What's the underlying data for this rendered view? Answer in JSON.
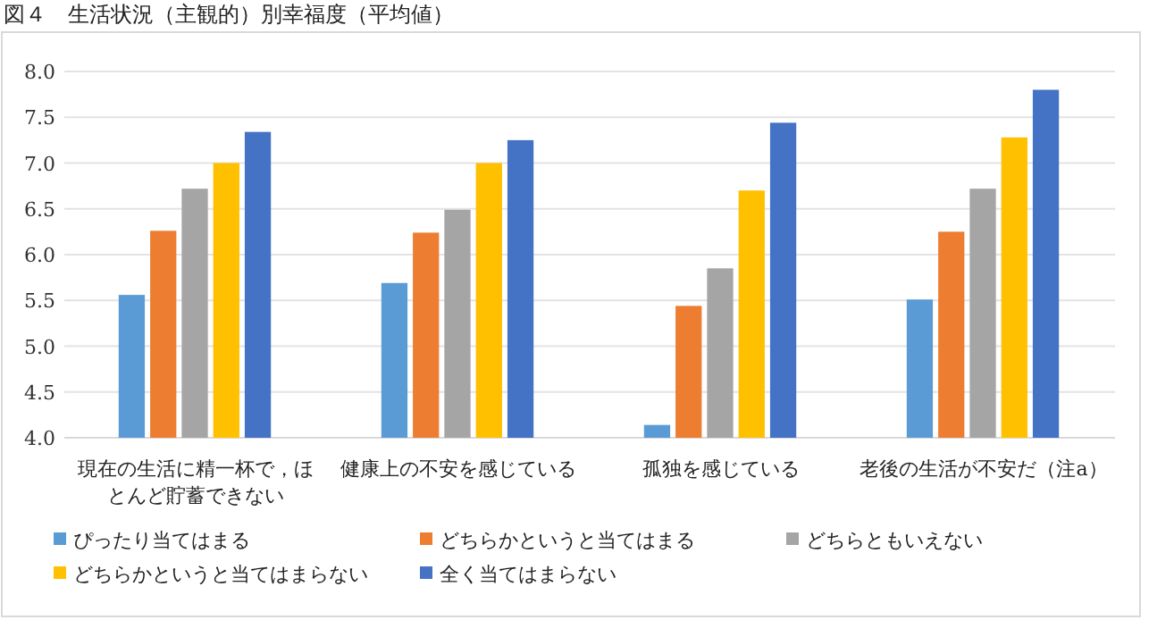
{
  "chart_data": {
    "type": "bar",
    "title": "図４　生活状況（主観的）別幸福度（平均値）",
    "categories": [
      "現在の生活に精一杯で，ほとんど貯蓄できない",
      "健康上の不安を感じている",
      "孤独を感じている",
      "老後の生活が不安だ（注a）"
    ],
    "series": [
      {
        "name": "ぴったり当てはまる",
        "color": "#5b9bd5",
        "values": [
          5.56,
          5.69,
          4.14,
          5.51
        ]
      },
      {
        "name": "どちらかというと当てはまる",
        "color": "#ed7d31",
        "values": [
          6.26,
          6.24,
          5.44,
          6.25
        ]
      },
      {
        "name": "どちらともいえない",
        "color": "#a5a5a5",
        "values": [
          6.72,
          6.49,
          5.85,
          6.72
        ]
      },
      {
        "name": "どちらかというと当てはまらない",
        "color": "#ffc000",
        "values": [
          7.0,
          7.0,
          6.7,
          7.28
        ]
      },
      {
        "name": "全く当てはまらない",
        "color": "#4472c4",
        "values": [
          7.34,
          7.25,
          7.44,
          7.8
        ]
      }
    ],
    "ylim": [
      4.0,
      8.0
    ],
    "yticks": [
      {
        "value": 4,
        "label": "4.0"
      },
      {
        "value": 4.5,
        "label": "4.5"
      },
      {
        "value": 5,
        "label": "5.0"
      },
      {
        "value": 5.5,
        "label": "5.5"
      },
      {
        "value": 6,
        "label": "6.0"
      },
      {
        "value": 6.5,
        "label": "6.5"
      },
      {
        "value": 7,
        "label": "7.0"
      },
      {
        "value": 7.5,
        "label": "7.5"
      },
      {
        "value": 8,
        "label": "8.0"
      }
    ],
    "grid": "y",
    "legend": "bottom"
  }
}
